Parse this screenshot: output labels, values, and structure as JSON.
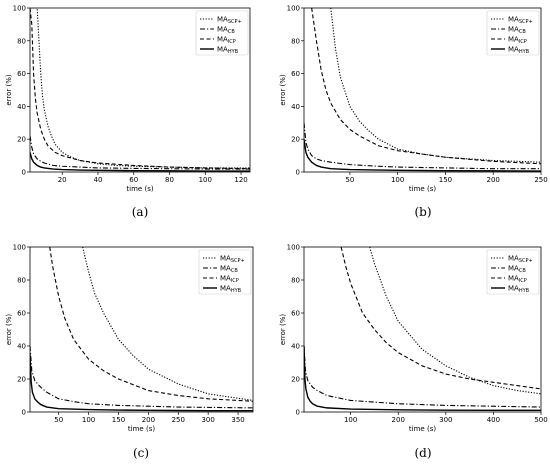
{
  "chart_data": [
    {
      "type": "line",
      "caption": "(a)",
      "xlabel": "time (s)",
      "ylabel": "error (%)",
      "xlim": [
        2,
        125
      ],
      "ylim": [
        0,
        100
      ],
      "xticks": [
        20,
        40,
        60,
        80,
        100,
        120
      ],
      "yticks": [
        0,
        20,
        40,
        60,
        80,
        100
      ],
      "legend": "top-right",
      "series": [
        {
          "name": "MA",
          "sub": "SCP+",
          "dash": "1.2,1.6",
          "x": [
            2,
            6,
            7,
            8,
            9,
            10,
            12,
            14,
            16,
            20,
            25,
            30,
            40,
            50,
            60,
            80,
            100,
            125
          ],
          "y": [
            100,
            100,
            80,
            60,
            46,
            38,
            28,
            22,
            17,
            12,
            9,
            7,
            5,
            4,
            3.5,
            3,
            2.5,
            2.5
          ]
        },
        {
          "name": "MA",
          "sub": "CB",
          "dash": "5,2,1.2,2",
          "x": [
            2,
            3,
            4,
            6,
            8,
            10,
            15,
            20,
            30,
            40,
            60,
            80,
            100,
            125
          ],
          "y": [
            22,
            15,
            11,
            8,
            6.5,
            5.5,
            4,
            3.5,
            3,
            2.5,
            2.2,
            2,
            1.8,
            1.8
          ]
        },
        {
          "name": "MA",
          "sub": "ICP",
          "dash": "4,2.5",
          "x": [
            2,
            3,
            4,
            5,
            6,
            8,
            10,
            12,
            16,
            20,
            30,
            40,
            60,
            80,
            100,
            125
          ],
          "y": [
            100,
            90,
            60,
            45,
            36,
            26,
            20,
            16,
            12,
            10,
            7,
            5.5,
            4,
            3,
            2.5,
            2
          ]
        },
        {
          "name": "MA",
          "sub": "HYB",
          "dash": "",
          "x": [
            2,
            3,
            4,
            6,
            8,
            10,
            15,
            20,
            30,
            40,
            60,
            80,
            100,
            125
          ],
          "y": [
            12,
            8,
            6,
            4,
            3,
            2.5,
            1.8,
            1.5,
            1.2,
            1,
            0.8,
            0.7,
            0.6,
            0.6
          ]
        }
      ]
    },
    {
      "type": "line",
      "caption": "(b)",
      "xlabel": "time (s)",
      "ylabel": "error (%)",
      "xlim": [
        2,
        250
      ],
      "ylim": [
        0,
        100
      ],
      "xticks": [
        50,
        100,
        150,
        200,
        250
      ],
      "yticks": [
        0,
        20,
        40,
        60,
        80,
        100
      ],
      "legend": "top-right",
      "series": [
        {
          "name": "MA",
          "sub": "SCP+",
          "dash": "1.2,1.6",
          "x": [
            30,
            35,
            40,
            50,
            60,
            70,
            80,
            100,
            125,
            150,
            200,
            250
          ],
          "y": [
            100,
            75,
            58,
            40,
            31,
            25,
            20,
            14,
            11,
            9,
            7,
            6
          ]
        },
        {
          "name": "MA",
          "sub": "CB",
          "dash": "5,2,1.2,2",
          "x": [
            2,
            4,
            6,
            10,
            15,
            20,
            30,
            50,
            80,
            100,
            150,
            200,
            250
          ],
          "y": [
            30,
            18,
            14,
            10,
            8,
            7,
            6,
            4.5,
            3.5,
            3,
            2.5,
            2,
            2
          ]
        },
        {
          "name": "MA",
          "sub": "ICP",
          "dash": "4,2.5",
          "x": [
            10,
            15,
            20,
            25,
            30,
            40,
            50,
            60,
            80,
            100,
            150,
            200,
            250
          ],
          "y": [
            100,
            80,
            62,
            50,
            42,
            32,
            26,
            22,
            16,
            13,
            9,
            6.5,
            5
          ]
        },
        {
          "name": "MA",
          "sub": "HYB",
          "dash": "",
          "x": [
            2,
            4,
            6,
            10,
            15,
            20,
            30,
            50,
            80,
            100,
            150,
            200,
            250
          ],
          "y": [
            20,
            12,
            9,
            6,
            4,
            3,
            2,
            1.5,
            1.2,
            1,
            0.8,
            0.7,
            0.6
          ]
        }
      ]
    },
    {
      "type": "line",
      "caption": "(c)",
      "xlabel": "time (s)",
      "ylabel": "error (%)",
      "xlim": [
        2,
        375
      ],
      "ylim": [
        0,
        100
      ],
      "xticks": [
        50,
        100,
        150,
        200,
        250,
        300,
        350
      ],
      "yticks": [
        0,
        20,
        40,
        60,
        80,
        100
      ],
      "legend": "top-right",
      "series": [
        {
          "name": "MA",
          "sub": "SCP+",
          "dash": "1.2,1.6",
          "x": [
            90,
            100,
            110,
            125,
            150,
            175,
            200,
            250,
            300,
            375
          ],
          "y": [
            100,
            85,
            72,
            60,
            44,
            34,
            26,
            17,
            11,
            7
          ]
        },
        {
          "name": "MA",
          "sub": "CB",
          "dash": "5,2,1.2,2",
          "x": [
            2,
            5,
            10,
            20,
            30,
            50,
            80,
            100,
            150,
            200,
            250,
            300,
            375
          ],
          "y": [
            40,
            25,
            19,
            15,
            12,
            8,
            6,
            5,
            4,
            3.5,
            3,
            2.8,
            2.5
          ]
        },
        {
          "name": "MA",
          "sub": "ICP",
          "dash": "4,2.5",
          "x": [
            35,
            40,
            50,
            60,
            75,
            100,
            125,
            150,
            200,
            250,
            300,
            375
          ],
          "y": [
            100,
            88,
            70,
            57,
            44,
            32,
            25,
            20,
            13,
            10,
            8,
            6.5
          ]
        },
        {
          "name": "MA",
          "sub": "HYB",
          "dash": "",
          "x": [
            2,
            4,
            6,
            10,
            15,
            20,
            30,
            50,
            100,
            150,
            200,
            250,
            300,
            375
          ],
          "y": [
            35,
            18,
            12,
            8,
            6,
            4.5,
            3,
            2,
            1.5,
            1.2,
            1,
            0.9,
            0.8,
            0.8
          ]
        }
      ]
    },
    {
      "type": "line",
      "caption": "(d)",
      "xlabel": "time (s)",
      "ylabel": "error (%)",
      "xlim": [
        2,
        500
      ],
      "ylim": [
        0,
        100
      ],
      "xticks": [
        100,
        200,
        300,
        400,
        500
      ],
      "yticks": [
        0,
        20,
        40,
        60,
        80,
        100
      ],
      "legend": "top-right",
      "series": [
        {
          "name": "MA",
          "sub": "SCP+",
          "dash": "1.2,1.6",
          "x": [
            140,
            150,
            175,
            200,
            250,
            300,
            350,
            400,
            450,
            500
          ],
          "y": [
            100,
            90,
            70,
            55,
            38,
            28,
            21,
            16,
            13,
            11
          ]
        },
        {
          "name": "MA",
          "sub": "CB",
          "dash": "5,2,1.2,2",
          "x": [
            2,
            5,
            10,
            20,
            30,
            50,
            100,
            150,
            200,
            300,
            400,
            500
          ],
          "y": [
            40,
            25,
            19,
            15,
            13,
            10,
            7,
            6,
            5,
            4,
            3.5,
            3
          ]
        },
        {
          "name": "MA",
          "sub": "ICP",
          "dash": "4,2.5",
          "x": [
            80,
            90,
            100,
            125,
            150,
            175,
            200,
            250,
            300,
            350,
            400,
            450,
            500
          ],
          "y": [
            100,
            88,
            78,
            60,
            50,
            42,
            36,
            28,
            23,
            20,
            18,
            16,
            14
          ]
        },
        {
          "name": "MA",
          "sub": "HYB",
          "dash": "",
          "x": [
            2,
            4,
            6,
            10,
            15,
            20,
            30,
            50,
            100,
            200,
            300,
            400,
            500
          ],
          "y": [
            40,
            20,
            14,
            9,
            6.5,
            5,
            3.5,
            2.5,
            1.8,
            1.3,
            1.1,
            1,
            1
          ]
        }
      ]
    }
  ]
}
